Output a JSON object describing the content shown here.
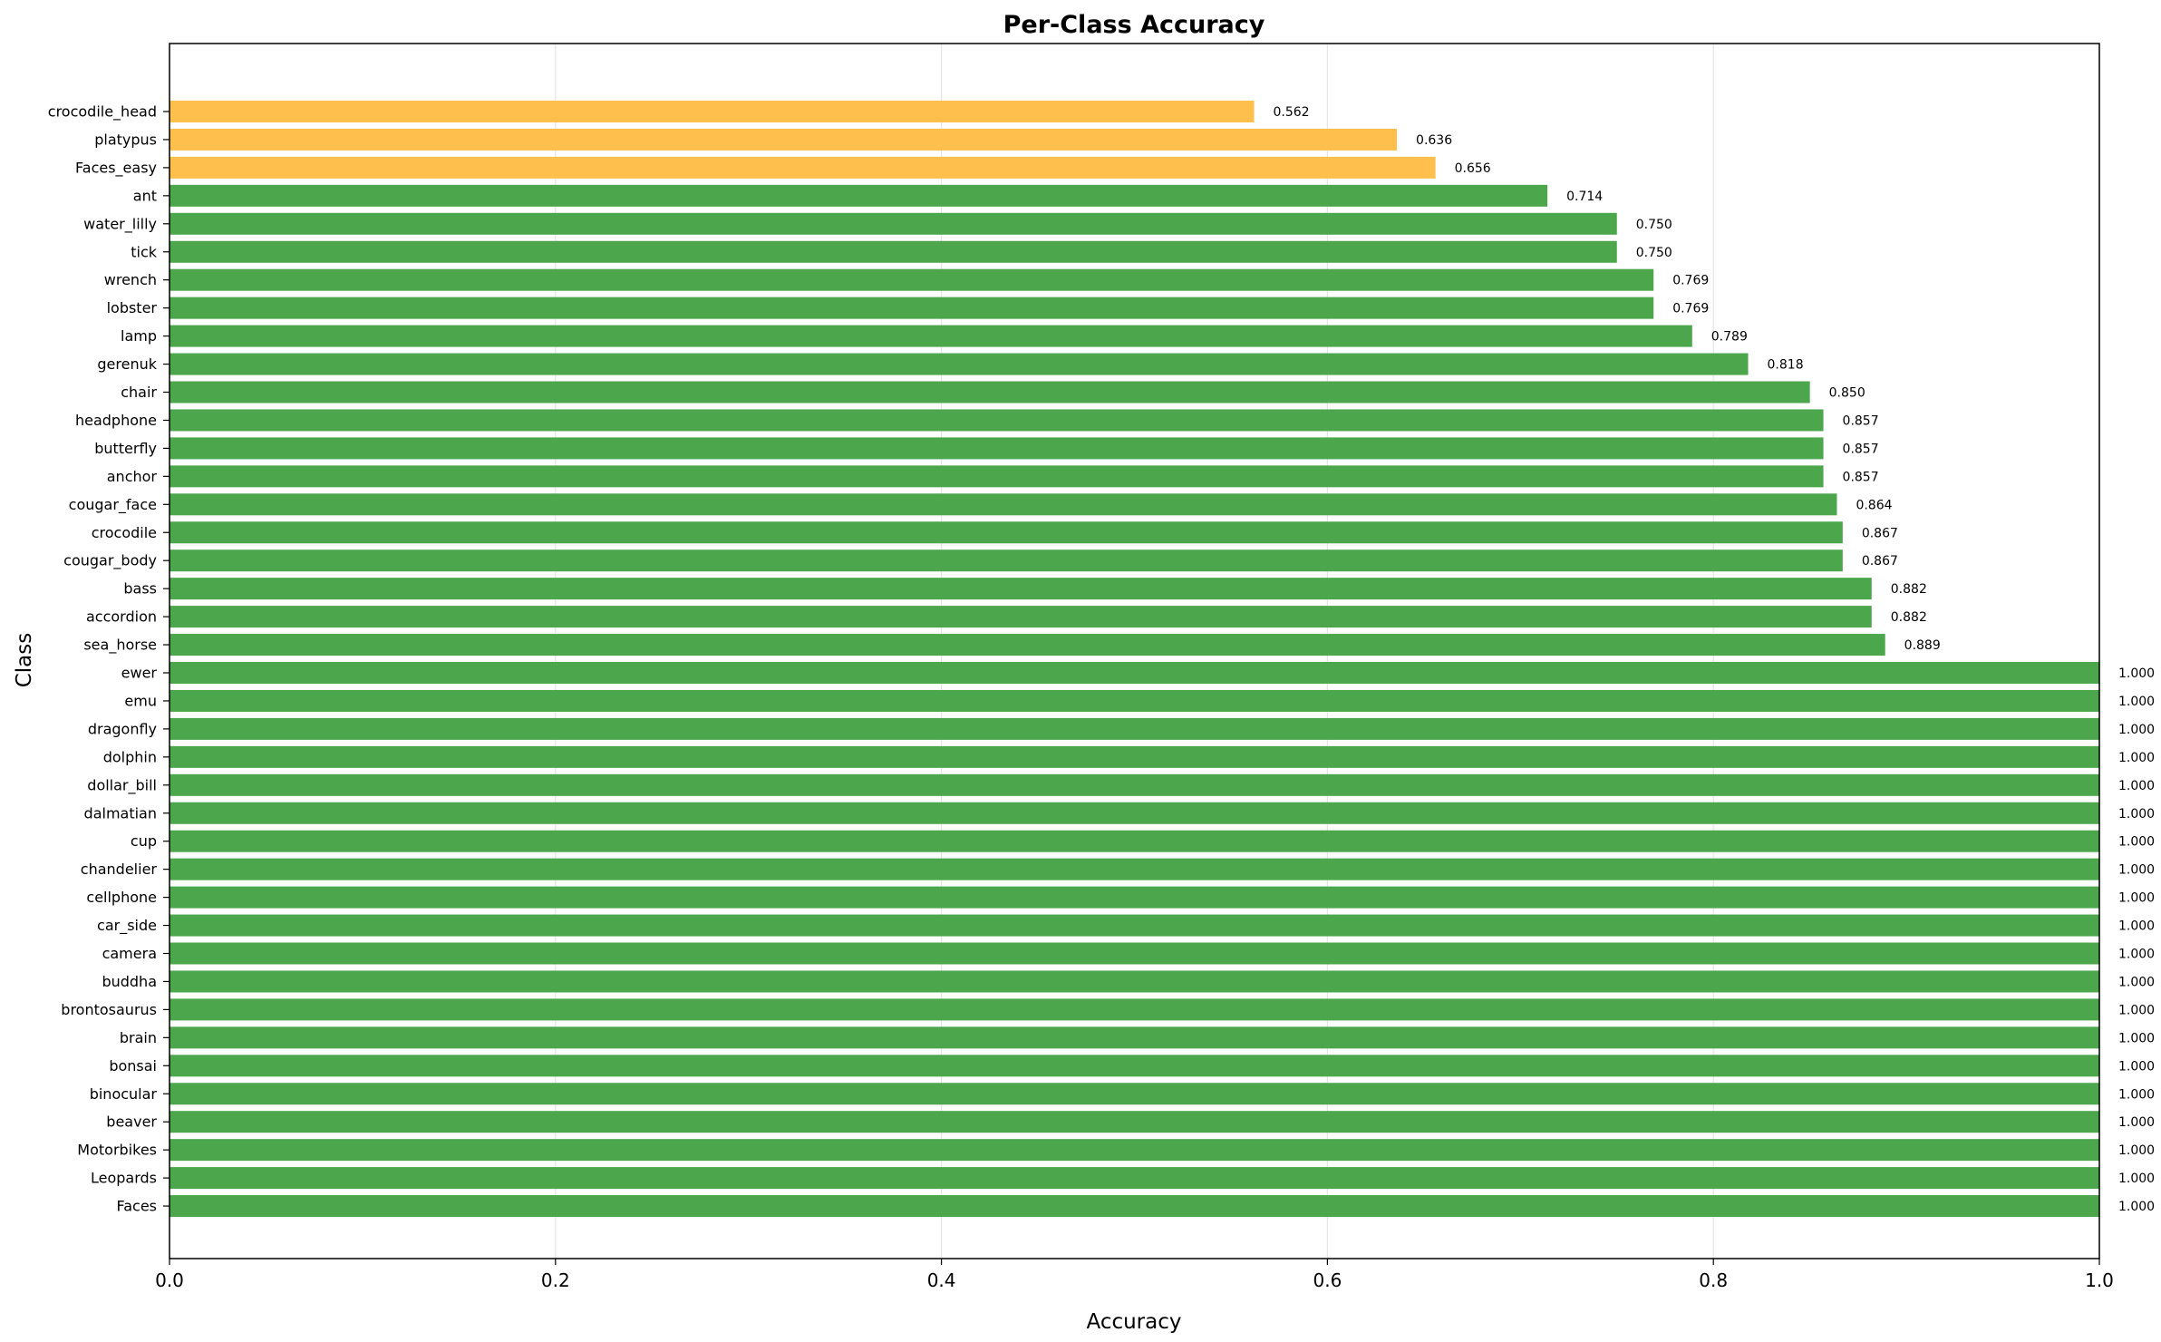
{
  "chart_data": {
    "type": "bar",
    "orientation": "horizontal",
    "title": "Per-Class Accuracy",
    "xlabel": "Accuracy",
    "ylabel": "Class",
    "xlim": [
      0,
      1
    ],
    "xticks": [
      "0.0",
      "0.2",
      "0.4",
      "0.6",
      "0.8",
      "1.0"
    ],
    "grid": "vertical",
    "colors": {
      "high": "#4ca64c",
      "low": "#ffbf4d",
      "grid": "#e6e6e6"
    },
    "color_threshold": 0.7,
    "categories": [
      "crocodile_head",
      "platypus",
      "Faces_easy",
      "ant",
      "water_lilly",
      "tick",
      "wrench",
      "lobster",
      "lamp",
      "gerenuk",
      "chair",
      "headphone",
      "butterfly",
      "anchor",
      "cougar_face",
      "crocodile",
      "cougar_body",
      "bass",
      "accordion",
      "sea_horse",
      "ewer",
      "emu",
      "dragonfly",
      "dolphin",
      "dollar_bill",
      "dalmatian",
      "cup",
      "chandelier",
      "cellphone",
      "car_side",
      "camera",
      "buddha",
      "brontosaurus",
      "brain",
      "bonsai",
      "binocular",
      "beaver",
      "Motorbikes",
      "Leopards",
      "Faces"
    ],
    "values": [
      0.562,
      0.636,
      0.656,
      0.714,
      0.75,
      0.75,
      0.769,
      0.769,
      0.789,
      0.818,
      0.85,
      0.857,
      0.857,
      0.857,
      0.864,
      0.867,
      0.867,
      0.882,
      0.882,
      0.889,
      1.0,
      1.0,
      1.0,
      1.0,
      1.0,
      1.0,
      1.0,
      1.0,
      1.0,
      1.0,
      1.0,
      1.0,
      1.0,
      1.0,
      1.0,
      1.0,
      1.0,
      1.0,
      1.0,
      1.0
    ],
    "value_labels": [
      "0.562",
      "0.636",
      "0.656",
      "0.714",
      "0.750",
      "0.750",
      "0.769",
      "0.769",
      "0.789",
      "0.818",
      "0.850",
      "0.857",
      "0.857",
      "0.857",
      "0.864",
      "0.867",
      "0.867",
      "0.882",
      "0.882",
      "0.889",
      "1.000",
      "1.000",
      "1.000",
      "1.000",
      "1.000",
      "1.000",
      "1.000",
      "1.000",
      "1.000",
      "1.000",
      "1.000",
      "1.000",
      "1.000",
      "1.000",
      "1.000",
      "1.000",
      "1.000",
      "1.000",
      "1.000",
      "1.000"
    ]
  }
}
